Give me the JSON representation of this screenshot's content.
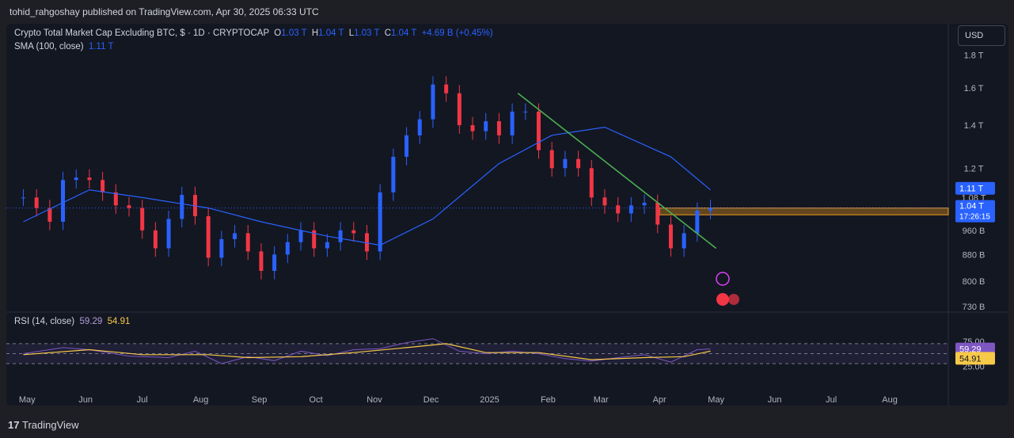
{
  "header": {
    "published": "tohid_rahgoshay published on TradingView.com, Apr 30, 2025 06:33 UTC"
  },
  "legend": {
    "symbol": "Crypto Total Market Cap Excluding BTC, $ · 1D · CRYPTOCAP",
    "o_label": "O",
    "o_val": "1.03 T",
    "h_label": "H",
    "h_val": "1.04 T",
    "l_label": "L",
    "l_val": "1.03 T",
    "c_label": "C",
    "c_val": "1.04 T",
    "change": "+4.69 B (+0.45%)",
    "sma_label": "SMA (100, close)",
    "sma_val": "1.11 T",
    "rsi_label": "RSI (14, close)",
    "rsi_val": "59.29",
    "rsi_ma_val": "54.91"
  },
  "currency_button": "USD",
  "footer": {
    "brand": "TradingView"
  },
  "chart_data": {
    "type": "candlestick",
    "x_axis_labels": [
      "May",
      "Jun",
      "Jul",
      "Aug",
      "Sep",
      "Oct",
      "Nov",
      "Dec",
      "2025",
      "Feb",
      "Mar",
      "Apr",
      "May",
      "Jun",
      "Jul",
      "Aug"
    ],
    "price_axis_labels": [
      "1.8 T",
      "1.6 T",
      "1.4 T",
      "1.2 T",
      "1.08 T",
      "960 B",
      "880 B",
      "800 B",
      "730 B"
    ],
    "price_axis_values": [
      1800,
      1600,
      1400,
      1200,
      1080,
      960,
      880,
      800,
      730
    ],
    "y_scale": "log",
    "last_price_label": "1.04 T",
    "countdown_label": "17:26:15",
    "sma_label_badge": "1.11 T",
    "rsi_axis_labels": [
      "75.00",
      "25.00"
    ],
    "rsi_badge": "59.29",
    "rsi_ma_badge": "54.91",
    "rsi_bands": [
      70,
      50,
      30
    ],
    "series": [
      {
        "name": "Crypto Total Market Cap Excluding BTC",
        "style": "candles",
        "color_up": "#2962ff",
        "color_down": "#f23645",
        "points": [
          [
            "2024-04-29",
            1080
          ],
          [
            "2024-05-06",
            1040
          ],
          [
            "2024-05-13",
            990
          ],
          [
            "2024-05-20",
            1150
          ],
          [
            "2024-05-27",
            1160
          ],
          [
            "2024-06-03",
            1150
          ],
          [
            "2024-06-10",
            1100
          ],
          [
            "2024-06-17",
            1050
          ],
          [
            "2024-06-24",
            1040
          ],
          [
            "2024-07-01",
            960
          ],
          [
            "2024-07-08",
            900
          ],
          [
            "2024-07-15",
            1000
          ],
          [
            "2024-07-22",
            1090
          ],
          [
            "2024-07-29",
            1010
          ],
          [
            "2024-08-05",
            870
          ],
          [
            "2024-08-12",
            930
          ],
          [
            "2024-08-19",
            950
          ],
          [
            "2024-08-26",
            890
          ],
          [
            "2024-09-02",
            830
          ],
          [
            "2024-09-09",
            880
          ],
          [
            "2024-09-16",
            920
          ],
          [
            "2024-09-23",
            960
          ],
          [
            "2024-09-30",
            900
          ],
          [
            "2024-10-07",
            920
          ],
          [
            "2024-10-14",
            960
          ],
          [
            "2024-10-21",
            950
          ],
          [
            "2024-10-28",
            890
          ],
          [
            "2024-11-04",
            1100
          ],
          [
            "2024-11-11",
            1250
          ],
          [
            "2024-11-18",
            1350
          ],
          [
            "2024-11-25",
            1430
          ],
          [
            "2024-12-02",
            1620
          ],
          [
            "2024-12-09",
            1570
          ],
          [
            "2024-12-16",
            1400
          ],
          [
            "2024-12-23",
            1370
          ],
          [
            "2024-12-30",
            1420
          ],
          [
            "2025-01-06",
            1350
          ],
          [
            "2025-01-13",
            1470
          ],
          [
            "2025-01-20",
            1470
          ],
          [
            "2025-01-27",
            1280
          ],
          [
            "2025-02-03",
            1200
          ],
          [
            "2025-02-10",
            1240
          ],
          [
            "2025-02-17",
            1200
          ],
          [
            "2025-02-24",
            1080
          ],
          [
            "2025-03-03",
            1050
          ],
          [
            "2025-03-10",
            1020
          ],
          [
            "2025-03-17",
            1050
          ],
          [
            "2025-03-24",
            1060
          ],
          [
            "2025-03-31",
            980
          ],
          [
            "2025-04-07",
            900
          ],
          [
            "2025-04-14",
            950
          ],
          [
            "2025-04-21",
            1030
          ],
          [
            "2025-04-28",
            1040
          ]
        ]
      },
      {
        "name": "SMA (100, close)",
        "color": "#2962ff",
        "points": [
          [
            "2024-04-29",
            990
          ],
          [
            "2024-06-03",
            1110
          ],
          [
            "2024-07-01",
            1080
          ],
          [
            "2024-08-05",
            1040
          ],
          [
            "2024-09-02",
            990
          ],
          [
            "2024-10-07",
            940
          ],
          [
            "2024-11-04",
            910
          ],
          [
            "2024-12-02",
            1000
          ],
          [
            "2025-01-06",
            1220
          ],
          [
            "2025-02-03",
            1350
          ],
          [
            "2025-03-03",
            1390
          ],
          [
            "2025-04-07",
            1250
          ],
          [
            "2025-04-28",
            1110
          ]
        ]
      },
      {
        "name": "RSI (14, close)",
        "color": "#7e57c2",
        "points": [
          [
            "2024-04-29",
            50
          ],
          [
            "2024-05-20",
            62
          ],
          [
            "2024-06-03",
            58
          ],
          [
            "2024-06-24",
            45
          ],
          [
            "2024-07-15",
            42
          ],
          [
            "2024-07-29",
            55
          ],
          [
            "2024-08-12",
            30
          ],
          [
            "2024-08-26",
            44
          ],
          [
            "2024-09-09",
            36
          ],
          [
            "2024-09-23",
            55
          ],
          [
            "2024-10-07",
            46
          ],
          [
            "2024-10-21",
            58
          ],
          [
            "2024-11-04",
            60
          ],
          [
            "2024-11-18",
            72
          ],
          [
            "2024-12-02",
            80
          ],
          [
            "2024-12-16",
            55
          ],
          [
            "2024-12-30",
            50
          ],
          [
            "2025-01-13",
            55
          ],
          [
            "2025-01-27",
            50
          ],
          [
            "2025-02-10",
            40
          ],
          [
            "2025-02-24",
            35
          ],
          [
            "2025-03-10",
            42
          ],
          [
            "2025-03-24",
            48
          ],
          [
            "2025-04-07",
            33
          ],
          [
            "2025-04-21",
            58
          ],
          [
            "2025-04-28",
            59.29
          ]
        ]
      },
      {
        "name": "RSI-based MA",
        "color": "#f7c948",
        "points": [
          [
            "2024-04-29",
            48
          ],
          [
            "2024-06-03",
            58
          ],
          [
            "2024-07-01",
            48
          ],
          [
            "2024-08-05",
            48
          ],
          [
            "2024-08-26",
            42
          ],
          [
            "2024-09-23",
            44
          ],
          [
            "2024-10-21",
            52
          ],
          [
            "2024-11-18",
            62
          ],
          [
            "2024-12-09",
            70
          ],
          [
            "2024-12-30",
            52
          ],
          [
            "2025-01-27",
            52
          ],
          [
            "2025-02-24",
            38
          ],
          [
            "2025-03-24",
            42
          ],
          [
            "2025-04-14",
            44
          ],
          [
            "2025-04-28",
            54.91
          ]
        ]
      }
    ],
    "trendline": {
      "color": "#4caf50",
      "from": [
        "2025-01-16",
        1570
      ],
      "to": [
        "2025-05-01",
        900
      ]
    },
    "support_zone": {
      "color": "#f59d1c",
      "from_date": "2025-04-01",
      "low": 1015,
      "high": 1040
    }
  }
}
